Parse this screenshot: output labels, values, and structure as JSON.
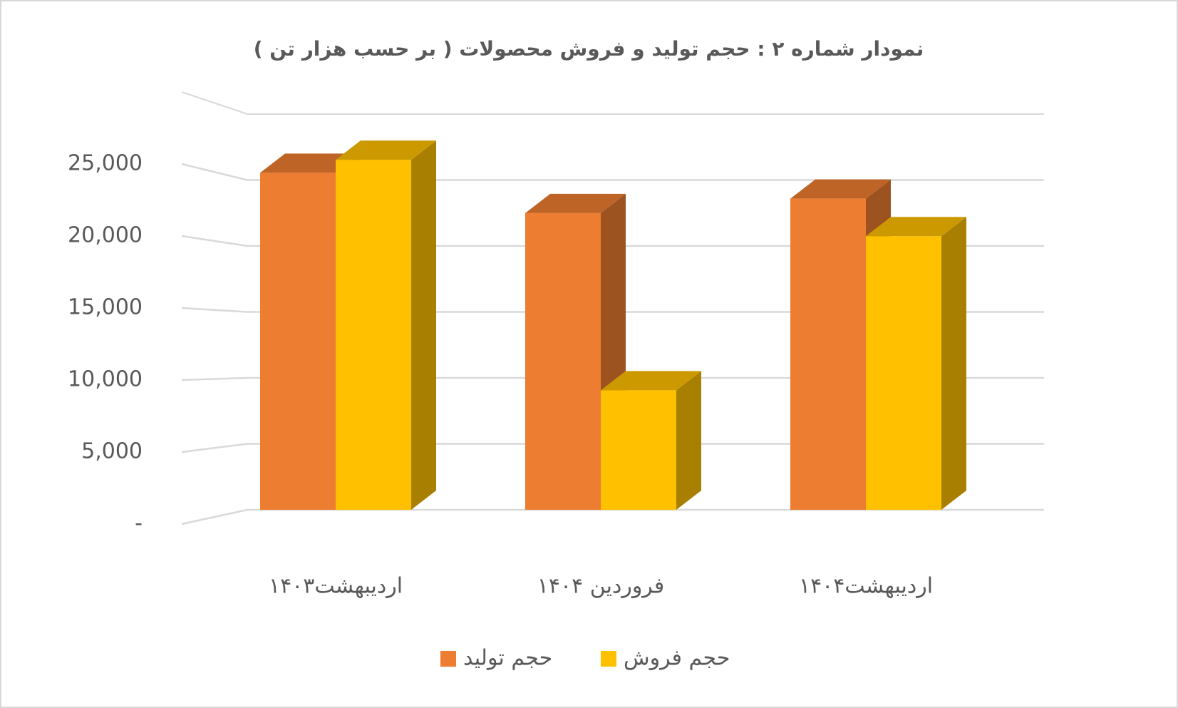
{
  "chart_data": {
    "type": "bar3d",
    "title": "نمودار شماره ۲ : حجم  تولید و فروش محصولات ( بر حسب هزار تن )",
    "categories": [
      "اردیبهشت۱۴۰۳",
      "فروردین ۱۴۰۴",
      "اردیبهشت۱۴۰۴"
    ],
    "series": [
      {
        "name": "حجم تولید",
        "color": "#ED7D31",
        "values": [
          23400,
          20600,
          21600
        ]
      },
      {
        "name": "حجم فروش",
        "color": "#FFC000",
        "values": [
          24300,
          8300,
          19000
        ]
      }
    ],
    "ylim": [
      0,
      30000
    ],
    "yticks": [
      {
        "value": 0,
        "label": "-"
      },
      {
        "value": 5000,
        "label": "5,000"
      },
      {
        "value": 10000,
        "label": "10,000"
      },
      {
        "value": 15000,
        "label": "15,000"
      },
      {
        "value": 20000,
        "label": "20,000"
      },
      {
        "value": 25000,
        "label": "25,000"
      }
    ],
    "grid": true,
    "legend": "bottom"
  }
}
